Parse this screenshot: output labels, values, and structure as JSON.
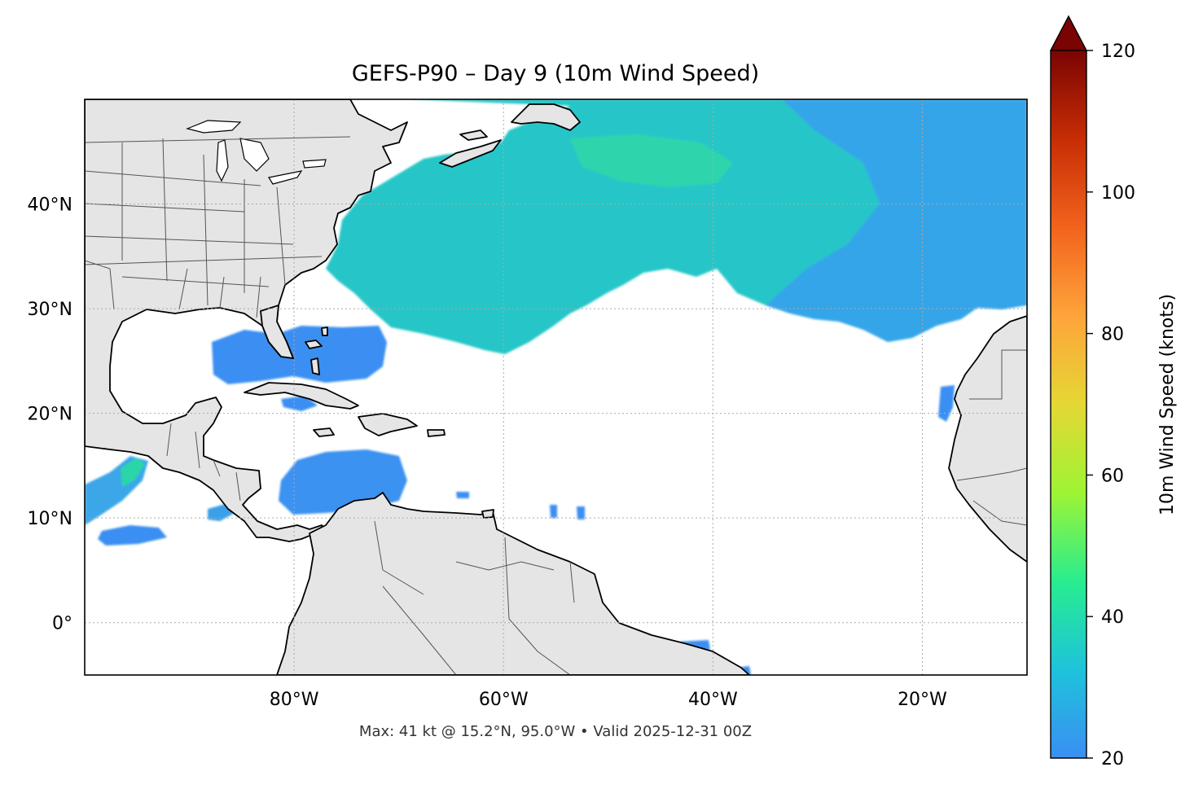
{
  "title": "GEFS-P90 – Day 9 (10m Wind Speed)",
  "footer": "Max: 41 kt @ 15.2°N, 95.0°W • Valid 2025-12-31 00Z",
  "map": {
    "lon_range": [
      -100,
      -10
    ],
    "lat_range": [
      -5,
      50
    ],
    "lon_ticks": [
      {
        "value": -80,
        "label": "80°W"
      },
      {
        "value": -60,
        "label": "60°W"
      },
      {
        "value": -40,
        "label": "40°W"
      },
      {
        "value": -20,
        "label": "20°W"
      }
    ],
    "lat_ticks": [
      {
        "value": 0,
        "label": "0°"
      },
      {
        "value": 10,
        "label": "10°N"
      },
      {
        "value": 20,
        "label": "20°N"
      },
      {
        "value": 30,
        "label": "30°N"
      },
      {
        "value": 40,
        "label": "40°N"
      }
    ],
    "gridlines": true,
    "land_color": "#e5e5e5",
    "coast_color": "#000000",
    "border_color": "#555555"
  },
  "colorbar": {
    "label": "10m Wind Speed (knots)",
    "min": 20,
    "max": 120,
    "extend": "max",
    "ticks": [
      {
        "value": 20,
        "label": "20"
      },
      {
        "value": 40,
        "label": "40"
      },
      {
        "value": 60,
        "label": "60"
      },
      {
        "value": 80,
        "label": "80"
      },
      {
        "value": 100,
        "label": "100"
      },
      {
        "value": 120,
        "label": "120"
      }
    ],
    "colors": [
      "#3a8ff2",
      "#1ec3db",
      "#28ed8e",
      "#9ef434",
      "#e5d734",
      "#fea43a",
      "#f2631d",
      "#c72d05",
      "#7a0403"
    ],
    "extend_color": "#7a0403"
  },
  "wind_field": {
    "threshold_kt": 20,
    "max": {
      "value_kt": 41,
      "lat": 15.2,
      "lon": -95.0
    },
    "regions": [
      {
        "name": "north-atlantic",
        "speed_kt": 32
      },
      {
        "name": "gulf-of-mexico",
        "speed_kt": 24
      },
      {
        "name": "caribbean",
        "speed_kt": 25
      },
      {
        "name": "eastern-pacific",
        "speed_kt": 28
      }
    ]
  }
}
